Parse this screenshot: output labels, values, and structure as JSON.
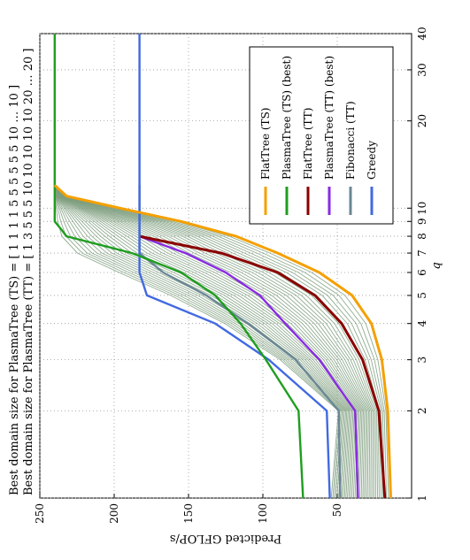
{
  "chart_data": {
    "type": "line",
    "orientation_note_omitted": true,
    "header_lines": [
      "Best domain size for PlasmaTree (TS) = [ 1 1 1 1 5 5 5 5 5 5 10 … 10 ]",
      "Best domain size for PlasmaTree (TT) = [ 1 3 5 5 5 10 10 10 10 10 20 … 20 ]"
    ],
    "xlabel": "q",
    "ylabel": "Predicted GFLOP/s",
    "x_scale": "log",
    "xlim": [
      1,
      40
    ],
    "ylim": [
      0,
      250
    ],
    "x_ticks": [
      {
        "v": 1,
        "label": "1"
      },
      {
        "v": 2,
        "label": "2"
      },
      {
        "v": 3,
        "label": "3"
      },
      {
        "v": 4,
        "label": "4"
      },
      {
        "v": 5,
        "label": "5"
      },
      {
        "v": 6,
        "label": "6"
      },
      {
        "v": 7,
        "label": "7"
      },
      {
        "v": 8,
        "label": "8"
      },
      {
        "v": 9,
        "label": "9"
      },
      {
        "v": 10,
        "label": "10"
      },
      {
        "v": 20,
        "label": "20"
      },
      {
        "v": 30,
        "label": "30"
      },
      {
        "v": 40,
        "label": "40"
      }
    ],
    "y_ticks": [
      {
        "v": 50,
        "label": "50"
      },
      {
        "v": 100,
        "label": "100"
      },
      {
        "v": 150,
        "label": "150"
      },
      {
        "v": 200,
        "label": "200"
      },
      {
        "v": 250,
        "label": "250"
      }
    ],
    "grid": true,
    "legend_position": "top-right",
    "series": [
      {
        "name": "FlatTree (TS)",
        "color": "#f5a000",
        "width": 3,
        "x": [
          1,
          2,
          3,
          4,
          5,
          6,
          7,
          8,
          9,
          10,
          11,
          12
        ],
        "y": [
          14,
          16,
          20,
          27,
          40,
          62,
          90,
          118,
          155,
          196,
          232,
          240
        ]
      },
      {
        "name": "PlasmaTree (TS) (best)",
        "color": "#1e9e1e",
        "width": 2.4,
        "x": [
          1,
          2,
          3,
          4,
          5,
          6,
          7,
          8,
          8.5,
          9,
          10,
          12,
          40
        ],
        "y": [
          73,
          76,
          98,
          115,
          132,
          155,
          188,
          232,
          236,
          240,
          240,
          240,
          240
        ]
      },
      {
        "name": "FlatTree (TT)",
        "color": "#8b0000",
        "width": 3,
        "x": [
          1,
          2,
          3,
          4,
          5,
          6,
          7,
          8
        ],
        "y": [
          18,
          22,
          33,
          47,
          65,
          90,
          128,
          183
        ]
      },
      {
        "name": "PlasmaTree (TT) (best)",
        "color": "#8a2be2",
        "width": 2.4,
        "x": [
          1,
          2,
          3,
          4,
          5,
          6,
          7,
          8
        ],
        "y": [
          36,
          38,
          62,
          85,
          102,
          125,
          152,
          183
        ]
      },
      {
        "name": "Fibonacci (TT)",
        "color": "#6a8795",
        "width": 2.4,
        "x": [
          1,
          2,
          3,
          4,
          5,
          6,
          7,
          8,
          9,
          12
        ],
        "y": [
          48,
          49,
          78,
          110,
          138,
          167,
          183,
          183,
          183,
          183
        ]
      },
      {
        "name": "Greedy",
        "color": "#4169e1",
        "width": 2.4,
        "x": [
          1,
          2,
          3,
          4,
          5,
          6,
          40
        ],
        "y": [
          55,
          57,
          96,
          132,
          178,
          183,
          183
        ]
      }
    ],
    "background_series_color": "#7e9e7e",
    "background_series_count": 38
  },
  "legend": {
    "items": [
      {
        "label": "FlatTree (TS)",
        "color": "#f5a000"
      },
      {
        "label": "PlasmaTree (TS) (best)",
        "color": "#1e9e1e"
      },
      {
        "label": "FlatTree (TT)",
        "color": "#8b0000"
      },
      {
        "label": "PlasmaTree (TT) (best)",
        "color": "#8a2be2"
      },
      {
        "label": "Fibonacci (TT)",
        "color": "#6a8795"
      },
      {
        "label": "Greedy",
        "color": "#4169e1"
      }
    ]
  }
}
